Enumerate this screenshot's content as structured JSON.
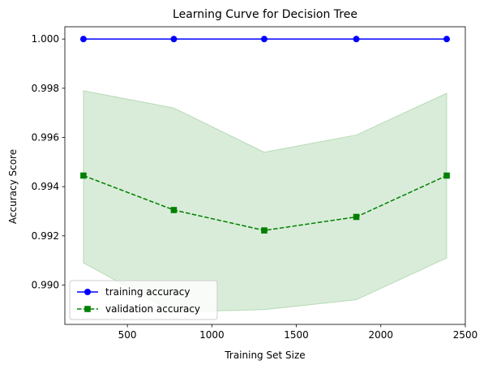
{
  "chart_data": {
    "type": "line",
    "title": "Learning Curve for Decision Tree",
    "xlabel": "Training Set Size",
    "ylabel": "Accuracy Score",
    "xlim": [
      130,
      2500
    ],
    "ylim": [
      0.9884,
      1.0005
    ],
    "xticks": [
      500,
      1000,
      1500,
      2000,
      2500
    ],
    "yticks": [
      0.99,
      0.992,
      0.994,
      0.996,
      0.998,
      1.0
    ],
    "ytick_labels": [
      "0.990",
      "0.992",
      "0.994",
      "0.996",
      "0.998",
      "1.000"
    ],
    "grid": false,
    "legend_position": "lower-left",
    "x": [
      240,
      775,
      1310,
      1855,
      2390
    ],
    "series": [
      {
        "name": "training accuracy",
        "values": [
          1.0,
          1.0,
          1.0,
          1.0,
          1.0
        ],
        "color": "#0000ff",
        "marker": "circle",
        "linestyle": "solid"
      },
      {
        "name": "validation accuracy",
        "values": [
          0.99445,
          0.99305,
          0.99222,
          0.99277,
          0.99445
        ],
        "color": "#008000",
        "marker": "square",
        "linestyle": "dashed",
        "band_lower": [
          0.9909,
          0.9889,
          0.989,
          0.9894,
          0.9911
        ],
        "band_upper": [
          0.9979,
          0.9972,
          0.9954,
          0.9961,
          0.9978
        ],
        "band_color": "#008000"
      }
    ]
  }
}
